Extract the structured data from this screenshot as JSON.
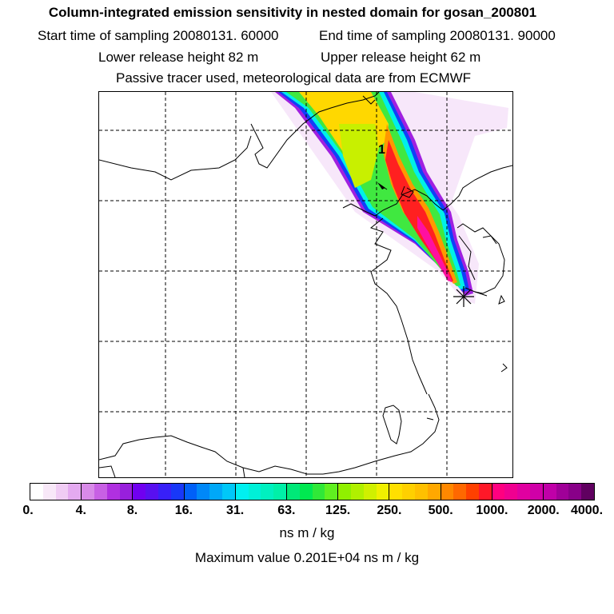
{
  "header": {
    "title": "Column-integrated emission sensitivity in nested domain for gosan_200801",
    "start_label": "Start time of sampling 20080131. 60000",
    "end_label": "End time of sampling 20080131. 90000",
    "lower_label": "Lower release height   82 m",
    "upper_label": "Upper release height   62 m",
    "tracer_note": "Passive tracer used, meteorological data are from ECMWF"
  },
  "map": {
    "marker_label": "1",
    "release_marker": "star-marker-icon"
  },
  "colorbar": {
    "ticks": [
      "0.",
      "4.",
      "8.",
      "16.",
      "31.",
      "63.",
      "125.",
      "250.",
      "500.",
      "1000.",
      "2000.",
      "4000."
    ],
    "segments": [
      [
        "#ffffff",
        "#f8e8f8",
        "#f0ccf4",
        "#e4aaf0"
      ],
      [
        "#d88ae8",
        "#c860e4",
        "#b030e0",
        "#9820dc"
      ],
      [
        "#7000f0",
        "#5810f0",
        "#3820f8",
        "#1838f8"
      ],
      [
        "#0060f8",
        "#0088f8",
        "#00a8f8",
        "#00c8f8"
      ],
      [
        "#00f0f0",
        "#00f0d8",
        "#00f0c0",
        "#00f0a8"
      ],
      [
        "#00e878",
        "#00e850",
        "#30e838",
        "#60f020"
      ],
      [
        "#90f000",
        "#b0f000",
        "#d0f000",
        "#f0f000"
      ],
      [
        "#ffe000",
        "#ffd000",
        "#ffc000",
        "#ffa800"
      ],
      [
        "#ff8800",
        "#ff6800",
        "#ff4000",
        "#ff1828"
      ],
      [
        "#ff0080",
        "#f00090",
        "#e000a0",
        "#d000a8"
      ],
      [
        "#c000a8",
        "#a00098",
        "#880088",
        "#600060"
      ]
    ],
    "unit": "ns m / kg"
  },
  "footer": {
    "max_value": "Maximum value  0.201E+04 ns m / kg"
  }
}
